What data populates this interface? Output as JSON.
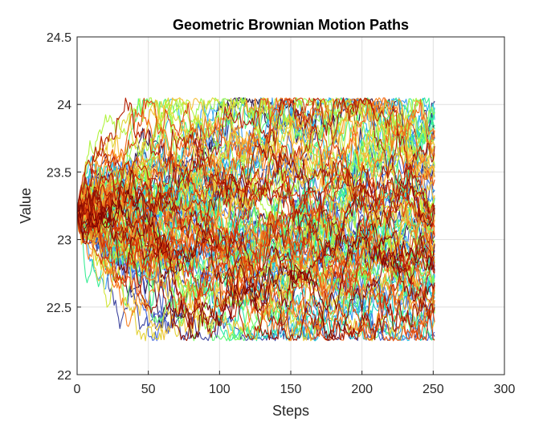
{
  "chart_data": {
    "type": "line",
    "title": "Geometric Brownian Motion Paths",
    "xlabel": "Steps",
    "ylabel": "Value",
    "xlim": [
      0,
      300
    ],
    "ylim": [
      22,
      24.5
    ],
    "xticks": [
      0,
      50,
      100,
      150,
      200,
      250,
      300
    ],
    "yticks": [
      22,
      22.5,
      23,
      23.5,
      24,
      24.5
    ],
    "xtick_labels": [
      "0",
      "50",
      "100",
      "150",
      "200",
      "250",
      "300"
    ],
    "ytick_labels": [
      "22",
      "22.5",
      "23",
      "23.5",
      "24",
      "24.5"
    ],
    "grid": true,
    "legend": "none",
    "start_value": 23.2,
    "steps": 252,
    "num_paths": 100,
    "colormap": "jet",
    "colormap_stops": [
      "#30123b",
      "#4662d7",
      "#36aaf9",
      "#1ae4b6",
      "#72fe5e",
      "#c8ef34",
      "#faba39",
      "#f66b19",
      "#cb2a04",
      "#7a0403"
    ],
    "endpoint_range": [
      22.25,
      24.05
    ]
  }
}
